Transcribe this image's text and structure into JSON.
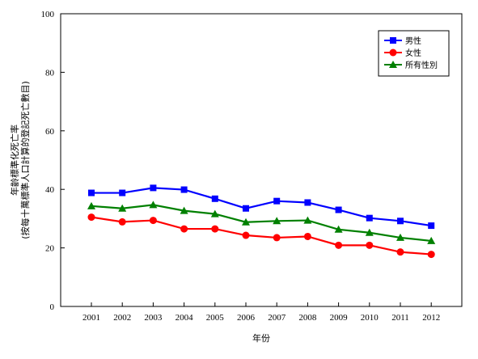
{
  "chart_data": {
    "type": "line",
    "title": "",
    "xlabel": "年份",
    "ylabel_line1": "年齡標準化死亡率",
    "ylabel_line2": "(按每十萬標準人口計算的登記死亡數目)",
    "ylim": [
      0,
      100
    ],
    "yticks": [
      0,
      20,
      40,
      60,
      80,
      100
    ],
    "grid": false,
    "legend_position": "top-right",
    "categories": [
      "2001",
      "2002",
      "2003",
      "2004",
      "2005",
      "2006",
      "2007",
      "2008",
      "2009",
      "2010",
      "2011",
      "2012"
    ],
    "series": [
      {
        "name": "男性",
        "color": "#0000ff",
        "marker": "square",
        "values": [
          38.8,
          38.8,
          40.5,
          39.9,
          36.8,
          33.5,
          36.0,
          35.5,
          33.0,
          30.2,
          29.2,
          27.6
        ]
      },
      {
        "name": "女性",
        "color": "#ff0000",
        "marker": "circle",
        "values": [
          30.5,
          28.9,
          29.4,
          26.5,
          26.5,
          24.3,
          23.5,
          23.9,
          20.9,
          20.9,
          18.6,
          17.8
        ]
      },
      {
        "name": "所有性別",
        "color": "#008000",
        "marker": "triangle",
        "values": [
          34.3,
          33.5,
          34.7,
          32.7,
          31.6,
          28.8,
          29.2,
          29.4,
          26.3,
          25.2,
          23.5,
          22.4
        ]
      }
    ]
  }
}
